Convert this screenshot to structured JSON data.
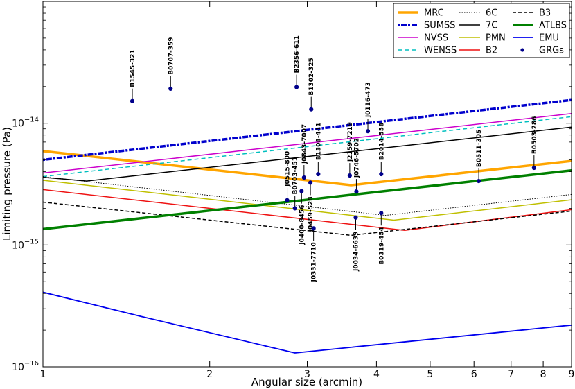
{
  "chart_data": {
    "type": "line",
    "xscale": "log",
    "yscale": "log",
    "xlabel": "Angular size (arcmin)",
    "ylabel": "Limiting pressure (Pa)",
    "xlim": [
      1,
      9
    ],
    "ylim": [
      1e-16,
      1e-13
    ],
    "x_ticks": [
      {
        "value": 1,
        "label": "1"
      },
      {
        "value": 2,
        "label": "2"
      },
      {
        "value": 3,
        "label": "3"
      },
      {
        "value": 4,
        "label": "4"
      },
      {
        "value": 5,
        "label": "5"
      },
      {
        "value": 6,
        "label": "6"
      },
      {
        "value": 7,
        "label": "7"
      },
      {
        "value": 8,
        "label": "8"
      },
      {
        "value": 9,
        "label": "9"
      }
    ],
    "y_ticks": [
      {
        "value": 1e-16,
        "base": "10",
        "exp": "−16"
      },
      {
        "value": 1e-15,
        "base": "10",
        "exp": "−15"
      },
      {
        "value": 1e-14,
        "base": "10",
        "exp": "−14"
      }
    ],
    "legend_position": "top-right",
    "series": [
      {
        "name": "MRC",
        "color": "#ffa500",
        "width": 3.5,
        "dash": "",
        "x": [
          1,
          3.6,
          9
        ],
        "y": [
          5.9e-15,
          3.1e-15,
          4.9e-15
        ]
      },
      {
        "name": "SUMSS",
        "color": "#0000cd",
        "width": 3.5,
        "dash": "3,2,8,2",
        "x": [
          1,
          9
        ],
        "y": [
          5e-15,
          1.55e-14
        ]
      },
      {
        "name": "NVSS",
        "color": "#cc00cc",
        "width": 1.5,
        "dash": "",
        "x": [
          1,
          9
        ],
        "y": [
          3.9e-15,
          1.2e-14
        ]
      },
      {
        "name": "WENSS",
        "color": "#00bfbf",
        "width": 1.5,
        "dash": "6,4",
        "x": [
          1,
          9
        ],
        "y": [
          3.65e-15,
          1.13e-14
        ]
      },
      {
        "name": "6C",
        "color": "#000000",
        "width": 1,
        "dash": "1.5,2",
        "x": [
          1,
          4.15,
          9
        ],
        "y": [
          3.65e-15,
          1.75e-15,
          2.6e-15
        ]
      },
      {
        "name": "7C",
        "color": "#000000",
        "width": 1.5,
        "dash": "",
        "x": [
          1,
          1.2,
          9
        ],
        "y": [
          3.6e-15,
          3.35e-15,
          9.3e-15
        ]
      },
      {
        "name": "PMN",
        "color": "#bfbf00",
        "width": 1.5,
        "dash": "",
        "x": [
          1,
          4.3,
          9
        ],
        "y": [
          3.4e-15,
          1.6e-15,
          2.35e-15
        ]
      },
      {
        "name": "B2",
        "color": "#ee1111",
        "width": 1.5,
        "dash": "",
        "x": [
          1,
          4.5,
          9
        ],
        "y": [
          2.85e-15,
          1.32e-15,
          1.95e-15
        ]
      },
      {
        "name": "B3",
        "color": "#000000",
        "width": 1.5,
        "dash": "5,3",
        "x": [
          1,
          3.6,
          9
        ],
        "y": [
          2.25e-15,
          1.2e-15,
          1.9e-15
        ]
      },
      {
        "name": "ATLBS",
        "color": "#008000",
        "width": 3.5,
        "dash": "",
        "x": [
          1,
          9
        ],
        "y": [
          1.35e-15,
          4.1e-15
        ]
      },
      {
        "name": "EMU",
        "color": "#0000ee",
        "width": 1.8,
        "dash": "",
        "x": [
          1,
          1.5,
          2.85,
          9
        ],
        "y": [
          4.1e-16,
          2.6e-16,
          1.3e-16,
          2.2e-16
        ]
      }
    ],
    "grgs_legend": "GRGs",
    "grgs": [
      {
        "label": "B1545-321",
        "x": 1.45,
        "y": 1.52e-14,
        "ldir": 1
      },
      {
        "label": "B0707-359",
        "x": 1.7,
        "y": 1.92e-14,
        "ldir": 1
      },
      {
        "label": "B2356-611",
        "x": 2.87,
        "y": 1.98e-14,
        "ldir": 1
      },
      {
        "label": "B1302-325",
        "x": 3.05,
        "y": 1.3e-14,
        "ldir": 1
      },
      {
        "label": "J0116-473",
        "x": 3.86,
        "y": 8.6e-15,
        "ldir": 1
      },
      {
        "label": "J2159-7219",
        "x": 3.58,
        "y": 3.72e-15,
        "ldir": 1
      },
      {
        "label": "B1308-441",
        "x": 3.14,
        "y": 3.82e-15,
        "ldir": 1
      },
      {
        "label": "J0843-7007",
        "x": 2.96,
        "y": 3.58e-15,
        "ldir": 1
      },
      {
        "label": "J0515-800",
        "x": 2.76,
        "y": 2.33e-15,
        "ldir": 1
      },
      {
        "label": "B0703-451",
        "x": 2.85,
        "y": 2e-15,
        "ldir": 1
      },
      {
        "label": "J0746-5702",
        "x": 3.68,
        "y": 2.75e-15,
        "ldir": 1
      },
      {
        "label": "B2014-558",
        "x": 4.08,
        "y": 3.82e-15,
        "ldir": 1
      },
      {
        "label": "B0511-305",
        "x": 6.12,
        "y": 3.35e-15,
        "ldir": 1
      },
      {
        "label": "B0503-286",
        "x": 7.7,
        "y": 4.3e-15,
        "ldir": 1
      },
      {
        "label": "J0400-8456",
        "x": 2.93,
        "y": 2.77e-15,
        "ldir": -1
      },
      {
        "label": "J0459-528",
        "x": 3.04,
        "y": 3.25e-15,
        "ldir": -1
      },
      {
        "label": "J0331-7710",
        "x": 3.08,
        "y": 1.37e-15,
        "ldir": -1
      },
      {
        "label": "J0034-6639",
        "x": 3.67,
        "y": 1.68e-15,
        "ldir": -1
      },
      {
        "label": "B0319-454",
        "x": 4.08,
        "y": 1.83e-15,
        "ldir": -1
      }
    ]
  }
}
